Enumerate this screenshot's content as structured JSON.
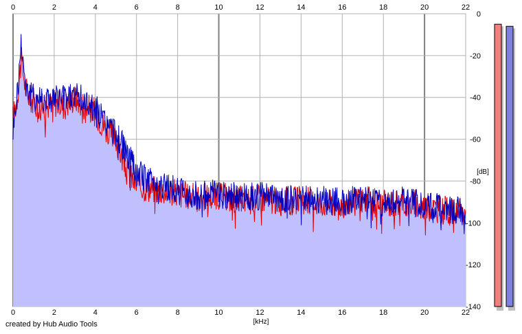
{
  "chart_data": {
    "type": "area",
    "xlabel": "[kHz]",
    "ylabel": "[dB]",
    "xlim": [
      0,
      22
    ],
    "ylim": [
      -140,
      0
    ],
    "x_ticks": [
      0,
      2,
      4,
      6,
      8,
      10,
      12,
      14,
      16,
      18,
      20,
      22
    ],
    "y_ticks": [
      0,
      -20,
      -40,
      -60,
      -80,
      -100,
      -120,
      -140
    ],
    "x_tick_labels": [
      "0",
      "2",
      "4",
      "6",
      "8",
      "10",
      "12",
      "14",
      "16",
      "18",
      "20",
      "22"
    ],
    "y_tick_labels": [
      "0",
      "-20",
      "-40",
      "-60",
      "-80",
      "-100",
      "-120",
      "-140"
    ],
    "grid": true,
    "fill_color": "#c0c0ff",
    "series": [
      {
        "color": "#e00000",
        "x": [
          0,
          0.2,
          0.4,
          0.6,
          0.8,
          1.0,
          1.5,
          2.0,
          2.5,
          3.0,
          3.5,
          4.0,
          4.5,
          5.0,
          5.5,
          6.0,
          6.5,
          7.0,
          8.0,
          9.0,
          10.0,
          11.0,
          12.0,
          13.0,
          14.0,
          15.0,
          16.0,
          17.0,
          18.0,
          19.0,
          20.0,
          21.0,
          22.0
        ],
        "values": [
          -50,
          -40,
          -22,
          -35,
          -40,
          -42,
          -45,
          -42,
          -44,
          -40,
          -44,
          -47,
          -55,
          -60,
          -75,
          -82,
          -83,
          -84,
          -86,
          -88,
          -87,
          -89,
          -88,
          -90,
          -89,
          -90,
          -91,
          -89,
          -91,
          -90,
          -92,
          -94,
          -96
        ]
      },
      {
        "color": "#0000c0",
        "x": [
          0,
          0.2,
          0.4,
          0.6,
          0.8,
          1.0,
          1.5,
          2.0,
          2.5,
          3.0,
          3.5,
          4.0,
          4.5,
          5.0,
          5.5,
          6.0,
          6.5,
          7.0,
          8.0,
          9.0,
          10.0,
          11.0,
          12.0,
          13.0,
          14.0,
          15.0,
          16.0,
          17.0,
          18.0,
          19.0,
          20.0,
          21.0,
          22.0
        ],
        "values": [
          -55,
          -38,
          -13,
          -33,
          -38,
          -40,
          -40,
          -41,
          -40,
          -39,
          -42,
          -45,
          -52,
          -57,
          -66,
          -76,
          -79,
          -81,
          -85,
          -87,
          -86,
          -88,
          -87,
          -89,
          -88,
          -89,
          -90,
          -88,
          -90,
          -89,
          -91,
          -93,
          -95
        ]
      }
    ],
    "level_meters": [
      {
        "color": "#f08080",
        "value": -5
      },
      {
        "color": "#8080e0",
        "value": -6
      }
    ]
  },
  "footer": {
    "credit": "created by Hub Audio Tools"
  }
}
